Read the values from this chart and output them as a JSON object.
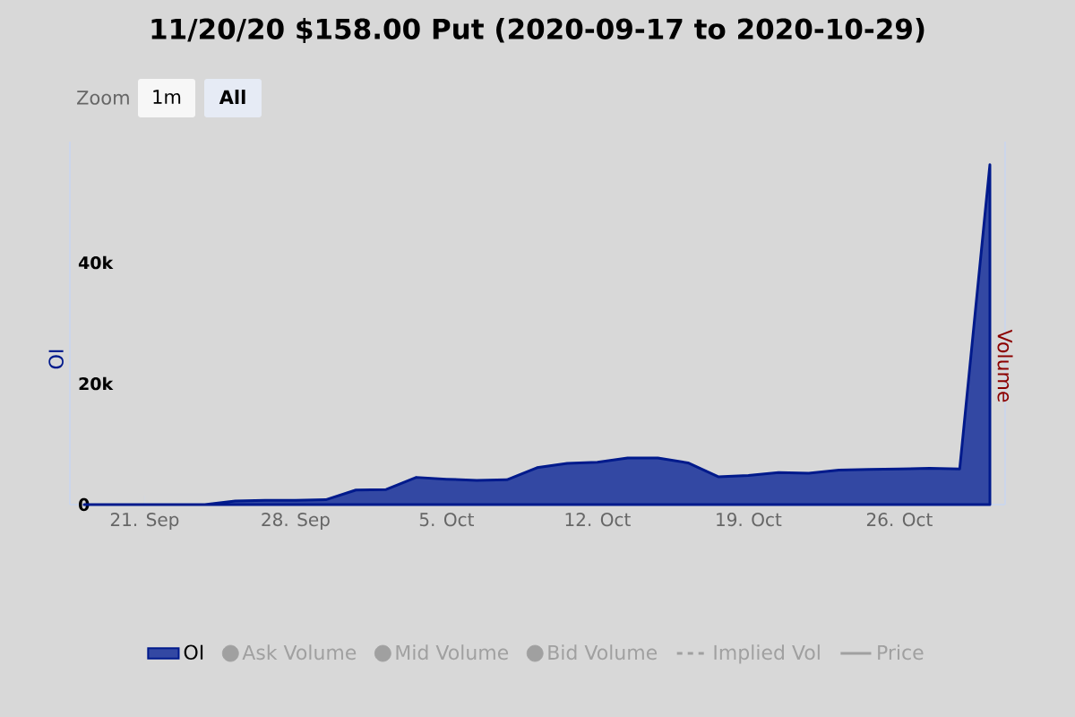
{
  "chart_data": {
    "type": "area",
    "title": "11/20/20 $158.00 Put (2020-09-17 to 2020-10-29)",
    "ylabel": "OI",
    "y2label": "Volume",
    "annotations": [
      "Zoom",
      "1m",
      "All"
    ],
    "categories": [
      null,
      null,
      "21. Sep",
      null,
      null,
      null,
      null,
      "28. Sep",
      null,
      null,
      null,
      null,
      "5. Oct",
      null,
      null,
      null,
      null,
      "12. Oct",
      null,
      null,
      null,
      null,
      "19. Oct",
      null,
      null,
      null,
      null,
      "26. Oct",
      null,
      null,
      null
    ],
    "series": [
      {
        "name": "OI",
        "color": "#001a8c",
        "values": [
          0,
          0,
          0,
          0,
          0,
          600,
          700,
          700,
          800,
          2400,
          2500,
          4500,
          4200,
          4000,
          4100,
          6100,
          6800,
          7000,
          7700,
          7700,
          6900,
          4600,
          4800,
          5300,
          5200,
          5700,
          5800,
          5900,
          6000,
          5900,
          56200
        ]
      },
      {
        "name": "Ask Volume",
        "type": "bar",
        "color": "#a0a0a0",
        "values": [
          null,
          null,
          null,
          null,
          null,
          null,
          null,
          null,
          null,
          null,
          null,
          null,
          null,
          null,
          null,
          null,
          null,
          null,
          null,
          null,
          null,
          null,
          null,
          null,
          null,
          null,
          null,
          null,
          null,
          null,
          null
        ]
      },
      {
        "name": "Mid Volume",
        "type": "bar",
        "color": "#a0a0a0",
        "values": [
          null,
          null,
          null,
          null,
          null,
          null,
          null,
          null,
          null,
          null,
          null,
          null,
          null,
          null,
          null,
          null,
          null,
          null,
          null,
          null,
          null,
          null,
          null,
          null,
          null,
          null,
          null,
          null,
          null,
          null,
          null
        ]
      },
      {
        "name": "Bid Volume",
        "type": "bar",
        "color": "#a0a0a0",
        "values": [
          null,
          null,
          null,
          null,
          null,
          null,
          null,
          null,
          null,
          null,
          null,
          null,
          null,
          null,
          null,
          null,
          null,
          null,
          null,
          null,
          null,
          null,
          null,
          null,
          null,
          null,
          null,
          null,
          null,
          null,
          null
        ]
      },
      {
        "name": "Implied Vol",
        "type": "line",
        "line_style": "dashed",
        "color": "#a0a0a0",
        "values": [
          null,
          null,
          null,
          null,
          null,
          null,
          null,
          null,
          null,
          null,
          null,
          null,
          null,
          null,
          null,
          null,
          null,
          null,
          null,
          null,
          null,
          null,
          null,
          null,
          null,
          null,
          null,
          null,
          null,
          null,
          null
        ]
      },
      {
        "name": "Price",
        "type": "line",
        "line_style": "solid",
        "color": "#a0a0a0",
        "values": [
          null,
          null,
          null,
          null,
          null,
          null,
          null,
          null,
          null,
          null,
          null,
          null,
          null,
          null,
          null,
          null,
          null,
          null,
          null,
          null,
          null,
          null,
          null,
          null,
          null,
          null,
          null,
          null,
          null,
          null,
          null
        ]
      }
    ],
    "ylim": [
      0,
      60000
    ],
    "yticks": [
      {
        "value": 0,
        "label": "0"
      },
      {
        "value": 20000,
        "label": "20k"
      },
      {
        "value": 40000,
        "label": "40k"
      }
    ],
    "legend": "bottom"
  }
}
